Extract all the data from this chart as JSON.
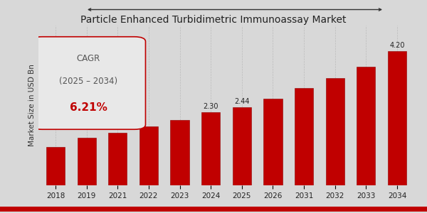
{
  "title": "Particle Enhanced Turbidimetric Immunoassay Market",
  "ylabel": "Market Size in USD Bn",
  "categories": [
    "2018",
    "2019",
    "2021",
    "2022",
    "2023",
    "2024",
    "2025",
    "2026",
    "2031",
    "2032",
    "2033",
    "2034"
  ],
  "values": [
    1.2,
    1.5,
    1.65,
    1.85,
    2.05,
    2.3,
    2.44,
    2.72,
    3.05,
    3.35,
    3.72,
    4.2
  ],
  "bar_color": "#C00000",
  "bar_edge_color": "#900000",
  "background_color": "#D8D8D8",
  "title_color": "#222222",
  "label_values": {
    "2024": "2.30",
    "2025": "2.44",
    "2034": "4.20"
  },
  "cagr_text_line1": "CAGR",
  "cagr_text_line2": "(2025 – 2034)",
  "cagr_value": "6.21%",
  "cagr_text_color": "#555555",
  "cagr_value_color": "#C00000",
  "cagr_box_color": "#E8E8E8",
  "ylabel_color": "#333333",
  "title_fontsize": 10,
  "bar_label_fontsize": 7,
  "cagr_fontsize": 8.5,
  "cagr_value_fontsize": 11,
  "ylabel_fontsize": 7.5,
  "xtick_fontsize": 7.5,
  "ylim": [
    0,
    5.0
  ],
  "bottom_line_color": "#C00000",
  "arrow_color": "#333333"
}
